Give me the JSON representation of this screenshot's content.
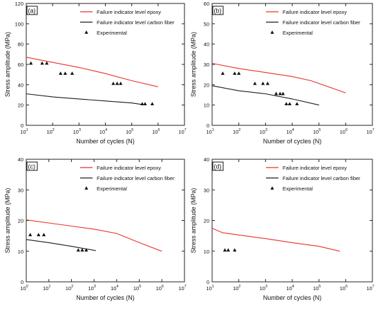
{
  "chart_data": [
    {
      "type": "line",
      "panel_label": "(a)",
      "xlabel": "Number of cycles (N)",
      "ylabel": "Stress amplitude (MPa)",
      "xscale": "log",
      "xlim": [
        1,
        7
      ],
      "ylim": [
        0,
        120
      ],
      "xticks": [
        {
          "e": 1,
          "label_base": "10",
          "label_exp": "1"
        },
        {
          "e": 2,
          "label_base": "10",
          "label_exp": "2"
        },
        {
          "e": 3,
          "label_base": "10",
          "label_exp": "3"
        },
        {
          "e": 4,
          "label_base": "10",
          "label_exp": "4"
        },
        {
          "e": 5,
          "label_base": "10",
          "label_exp": "5"
        },
        {
          "e": 6,
          "label_base": "10",
          "label_exp": "6"
        },
        {
          "e": 7,
          "label_base": "10",
          "label_exp": "7"
        }
      ],
      "yticks": [
        {
          "v": 0,
          "label": "0"
        },
        {
          "v": 20,
          "label": "20"
        },
        {
          "v": 40,
          "label": "40"
        },
        {
          "v": 60,
          "label": "60"
        },
        {
          "v": 80,
          "label": "80"
        },
        {
          "v": 100,
          "label": "100"
        },
        {
          "v": 120,
          "label": "120"
        }
      ],
      "legend_position": "top-right",
      "series": [
        {
          "name": "Failure indicator level epoxy",
          "kind": "line",
          "color": "#e8302a",
          "points": [
            [
              10,
              67
            ],
            [
              100,
              62
            ],
            [
              1000,
              57
            ],
            [
              10000,
              51
            ],
            [
              100000,
              44
            ],
            [
              1000000,
              38
            ]
          ]
        },
        {
          "name": "Failure indicator level carbon fiber",
          "kind": "line",
          "color": "#1a1a1a",
          "points": [
            [
              10,
              31
            ],
            [
              100,
              28
            ],
            [
              1000,
              26
            ],
            [
              10000,
              24
            ],
            [
              100000,
              22
            ],
            [
              250000,
              20.5
            ]
          ]
        },
        {
          "name": "Experimental",
          "kind": "marker",
          "color": "#111111",
          "points": [
            [
              15,
              61
            ],
            [
              40,
              61
            ],
            [
              60,
              61
            ],
            [
              200,
              51
            ],
            [
              300,
              51
            ],
            [
              550,
              51
            ],
            [
              20000,
              41
            ],
            [
              28000,
              41
            ],
            [
              38000,
              41
            ],
            [
              250000,
              21
            ],
            [
              320000,
              21
            ],
            [
              600000,
              21
            ]
          ]
        }
      ]
    },
    {
      "type": "line",
      "panel_label": "(b)",
      "xlabel": "Number of cycles (N)",
      "ylabel": "Stress amplitude (MPa)",
      "xscale": "log",
      "xlim": [
        1,
        7
      ],
      "ylim": [
        0,
        60
      ],
      "xticks": [
        {
          "e": 1,
          "label_base": "10",
          "label_exp": "1"
        },
        {
          "e": 2,
          "label_base": "10",
          "label_exp": "2"
        },
        {
          "e": 3,
          "label_base": "10",
          "label_exp": "3"
        },
        {
          "e": 4,
          "label_base": "10",
          "label_exp": "4"
        },
        {
          "e": 5,
          "label_base": "10",
          "label_exp": "5"
        },
        {
          "e": 6,
          "label_base": "10",
          "label_exp": "6"
        },
        {
          "e": 7,
          "label_base": "10",
          "label_exp": "7"
        }
      ],
      "yticks": [
        {
          "v": 0,
          "label": "0"
        },
        {
          "v": 10,
          "label": "10"
        },
        {
          "v": 20,
          "label": "20"
        },
        {
          "v": 30,
          "label": "30"
        },
        {
          "v": 40,
          "label": "40"
        },
        {
          "v": 50,
          "label": "50"
        },
        {
          "v": 60,
          "label": "60"
        }
      ],
      "legend_position": "top-right",
      "series": [
        {
          "name": "Failure indicator level epoxy",
          "kind": "line",
          "color": "#e8302a",
          "points": [
            [
              10,
              30.5
            ],
            [
              100,
              28
            ],
            [
              1000,
              26
            ],
            [
              10000,
              24
            ],
            [
              50000,
              22
            ],
            [
              1000000,
              16
            ]
          ]
        },
        {
          "name": "Failure indicator level carbon fiber",
          "kind": "line",
          "color": "#1a1a1a",
          "points": [
            [
              10,
              19.5
            ],
            [
              100,
              17
            ],
            [
              1000,
              15.5
            ],
            [
              10000,
              13
            ],
            [
              100000,
              10
            ]
          ]
        },
        {
          "name": "Experimental",
          "kind": "marker",
          "color": "#111111",
          "points": [
            [
              25,
              25.5
            ],
            [
              70,
              25.5
            ],
            [
              100,
              25.5
            ],
            [
              400,
              20.5
            ],
            [
              800,
              20.5
            ],
            [
              1200,
              20.5
            ],
            [
              2500,
              15.5
            ],
            [
              3500,
              15.5
            ],
            [
              4500,
              15.5
            ],
            [
              6000,
              10.5
            ],
            [
              8000,
              10.5
            ],
            [
              15000,
              10.5
            ]
          ]
        }
      ]
    },
    {
      "type": "line",
      "panel_label": "(c)",
      "xlabel": "Number of cycles (N)",
      "ylabel": "Stress amplitude (MPa)",
      "xscale": "log",
      "xlim": [
        0,
        7
      ],
      "ylim": [
        0,
        40
      ],
      "xticks": [
        {
          "e": 0,
          "label_base": "10",
          "label_exp": "0"
        },
        {
          "e": 1,
          "label_base": "10",
          "label_exp": "1"
        },
        {
          "e": 2,
          "label_base": "10",
          "label_exp": "2"
        },
        {
          "e": 3,
          "label_base": "10",
          "label_exp": "3"
        },
        {
          "e": 4,
          "label_base": "10",
          "label_exp": "4"
        },
        {
          "e": 5,
          "label_base": "10",
          "label_exp": "5"
        },
        {
          "e": 6,
          "label_base": "10",
          "label_exp": "6"
        },
        {
          "e": 7,
          "label_base": "10",
          "label_exp": "7"
        }
      ],
      "yticks": [
        {
          "v": 0,
          "label": "0"
        },
        {
          "v": 10,
          "label": "10"
        },
        {
          "v": 20,
          "label": "20"
        },
        {
          "v": 30,
          "label": "30"
        },
        {
          "v": 40,
          "label": "40"
        }
      ],
      "legend_position": "top-right",
      "series": [
        {
          "name": "Failure indicator level epoxy",
          "kind": "line",
          "color": "#e8302a",
          "points": [
            [
              1,
              20.2
            ],
            [
              10,
              19.2
            ],
            [
              100,
              18.2
            ],
            [
              1000,
              17.2
            ],
            [
              10000,
              15.8
            ],
            [
              100000,
              12.8
            ],
            [
              1000000,
              10
            ]
          ]
        },
        {
          "name": "Failure indicator level carbon fiber",
          "kind": "line",
          "color": "#1a1a1a",
          "points": [
            [
              1,
              13.8
            ],
            [
              10,
              12.8
            ],
            [
              100,
              11.6
            ],
            [
              1200,
              10.2
            ]
          ]
        },
        {
          "name": "Experimental",
          "kind": "marker",
          "color": "#111111",
          "points": [
            [
              1.5,
              15.3
            ],
            [
              3.5,
              15.3
            ],
            [
              6,
              15.3
            ],
            [
              200,
              10.3
            ],
            [
              300,
              10.3
            ],
            [
              450,
              10.3
            ]
          ]
        }
      ]
    },
    {
      "type": "line",
      "panel_label": "(d)",
      "xlabel": "Number of cycles (N)",
      "ylabel": "Stress amplitude (MPa)",
      "xscale": "log",
      "xlim": [
        1,
        7
      ],
      "ylim": [
        0,
        40
      ],
      "xticks": [
        {
          "e": 1,
          "label_base": "10",
          "label_exp": "1"
        },
        {
          "e": 2,
          "label_base": "10",
          "label_exp": "2"
        },
        {
          "e": 3,
          "label_base": "10",
          "label_exp": "3"
        },
        {
          "e": 4,
          "label_base": "10",
          "label_exp": "4"
        },
        {
          "e": 5,
          "label_base": "10",
          "label_exp": "5"
        },
        {
          "e": 6,
          "label_base": "10",
          "label_exp": "6"
        },
        {
          "e": 7,
          "label_base": "10",
          "label_exp": "7"
        }
      ],
      "yticks": [
        {
          "v": 0,
          "label": "0"
        },
        {
          "v": 10,
          "label": "10"
        },
        {
          "v": 20,
          "label": "20"
        },
        {
          "v": 30,
          "label": "30"
        },
        {
          "v": 40,
          "label": "40"
        }
      ],
      "legend_position": "top-right",
      "series": [
        {
          "name": "Failure indicator level epoxy",
          "kind": "line",
          "color": "#e8302a",
          "points": [
            [
              10,
              17.5
            ],
            [
              25,
              16
            ],
            [
              100,
              15.3
            ],
            [
              1000,
              14.1
            ],
            [
              10000,
              12.8
            ],
            [
              100000,
              11.6
            ],
            [
              600000,
              10
            ]
          ]
        },
        {
          "name": "Failure indicator level carbon fiber",
          "kind": "line",
          "color": "#1a1a1a",
          "points": []
        },
        {
          "name": "Experimental",
          "kind": "marker",
          "color": "#111111",
          "points": [
            [
              30,
              10.3
            ],
            [
              40,
              10.3
            ],
            [
              70,
              10.3
            ]
          ]
        }
      ]
    }
  ]
}
